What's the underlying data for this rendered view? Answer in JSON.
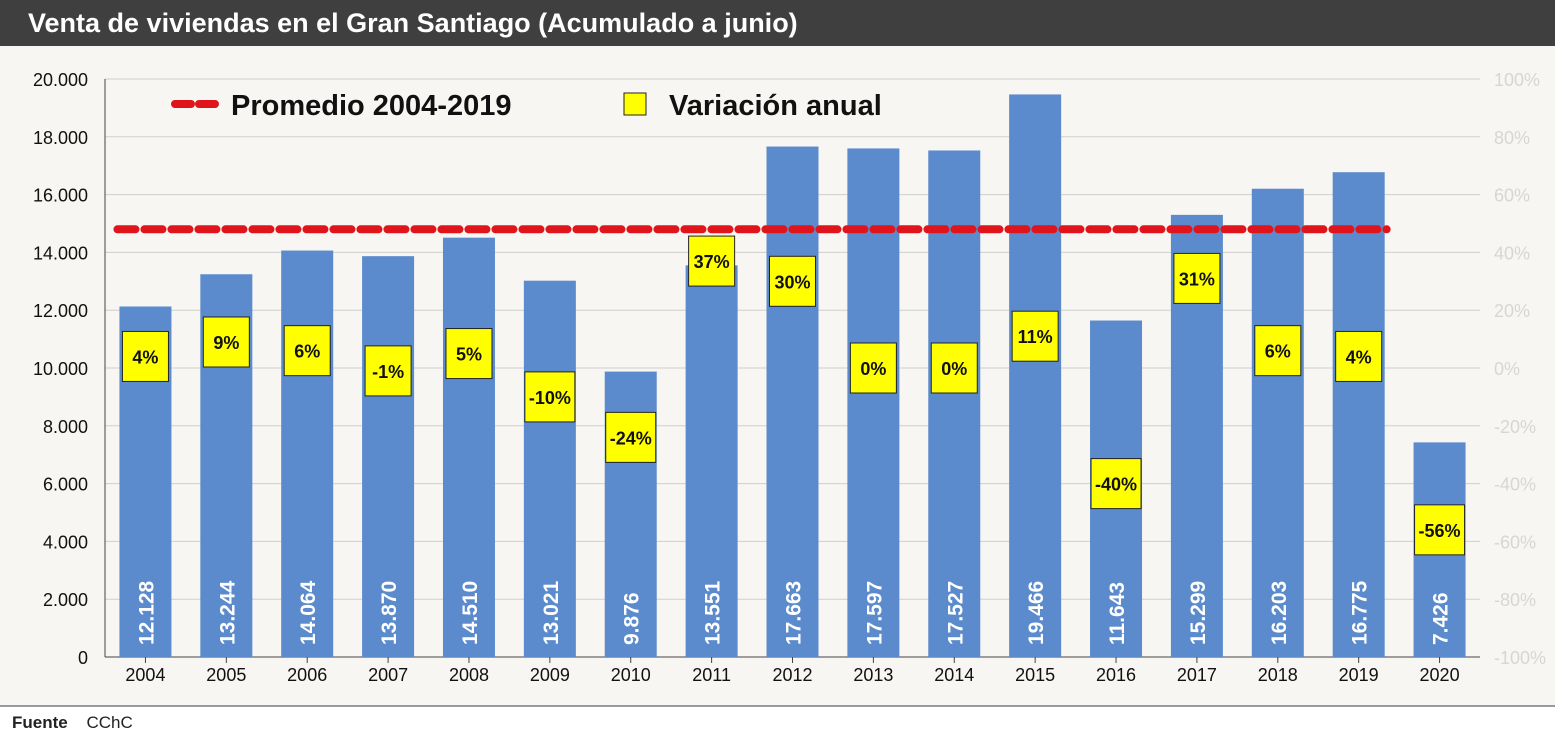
{
  "title": "Venta de viviendas en el Gran Santiago (Acumulado a junio)",
  "footer": {
    "label": "Fuente",
    "value": "CChC"
  },
  "colors": {
    "bar": "#5b8bcc",
    "average_line": "#e0151b",
    "label_box": "#ffff00",
    "plot_background": "#f7f6f2",
    "title_background": "#3f3f3f"
  },
  "chart_data": {
    "type": "bar",
    "categories": [
      "2004",
      "2005",
      "2006",
      "2007",
      "2008",
      "2009",
      "2010",
      "2011",
      "2012",
      "2013",
      "2014",
      "2015",
      "2016",
      "2017",
      "2018",
      "2019",
      "2020"
    ],
    "values": [
      12128,
      13244,
      14064,
      13870,
      14510,
      13021,
      9876,
      13551,
      17663,
      17597,
      17527,
      19466,
      11643,
      15299,
      16203,
      16775,
      7426
    ],
    "value_labels": [
      "12.128",
      "13.244",
      "14.064",
      "13.870",
      "14.510",
      "13.021",
      "9.876",
      "13.551",
      "17.663",
      "17.597",
      "17.527",
      "19.466",
      "11.643",
      "15.299",
      "16.203",
      "16.775",
      "7.426"
    ],
    "variation": [
      4,
      9,
      6,
      -1,
      5,
      -10,
      -24,
      37,
      30,
      0,
      0,
      11,
      -40,
      31,
      6,
      4,
      -56
    ],
    "variation_labels": [
      "4%",
      "9%",
      "6%",
      "-1%",
      "5%",
      "-10%",
      "-24%",
      "37%",
      "30%",
      "0%",
      "0%",
      "11%",
      "-40%",
      "31%",
      "6%",
      "4%",
      "-56%"
    ],
    "average": {
      "name": "Promedio 2004-2019",
      "value": 14800
    },
    "variation_series_name": "Variación anual",
    "ylim": [
      0,
      20000
    ],
    "y_ticks": [
      0,
      2000,
      4000,
      6000,
      8000,
      10000,
      12000,
      14000,
      16000,
      18000,
      20000
    ],
    "y_tick_labels": [
      "0",
      "2.000",
      "4.000",
      "6.000",
      "8.000",
      "10.000",
      "12.000",
      "14.000",
      "16.000",
      "18.000",
      "20.000"
    ],
    "y2lim": [
      -100,
      100
    ],
    "y2_ticks": [
      -100,
      -80,
      -60,
      -40,
      -20,
      0,
      20,
      40,
      60,
      80,
      100
    ],
    "y2_tick_labels": [
      "-100%",
      "-80%",
      "-60%",
      "-40%",
      "-20%",
      "0%",
      "20%",
      "40%",
      "60%",
      "80%",
      "100%"
    ],
    "grid": true,
    "legend_position": "top-left"
  }
}
